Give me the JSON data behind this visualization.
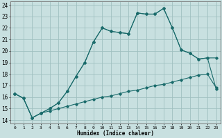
{
  "xlabel": "Humidex (Indice chaleur)",
  "background_color": "#c8e0e0",
  "grid_color": "#a0c0c0",
  "line_color": "#1a6b6b",
  "xlim": [
    -0.5,
    23.5
  ],
  "ylim": [
    13.7,
    24.3
  ],
  "yticks": [
    14,
    15,
    16,
    17,
    18,
    19,
    20,
    21,
    22,
    23,
    24
  ],
  "xticks": [
    0,
    1,
    2,
    3,
    4,
    5,
    6,
    7,
    8,
    9,
    10,
    11,
    12,
    13,
    14,
    15,
    16,
    17,
    18,
    19,
    20,
    21,
    22,
    23
  ],
  "line1_x": [
    0,
    1,
    2,
    3,
    4,
    5,
    6,
    7,
    8,
    9,
    10,
    11,
    12,
    13,
    14,
    15,
    16,
    17,
    18,
    19,
    20,
    21,
    22,
    23
  ],
  "line1_y": [
    16.3,
    15.9,
    14.2,
    14.6,
    14.8,
    15.0,
    15.2,
    15.4,
    15.6,
    15.8,
    16.0,
    16.1,
    16.3,
    16.5,
    16.6,
    16.8,
    17.0,
    17.1,
    17.3,
    17.5,
    17.7,
    17.9,
    18.0,
    16.8
  ],
  "line2_x": [
    0,
    1,
    2,
    3,
    4,
    5,
    6,
    7,
    8,
    9,
    10,
    11,
    12,
    13,
    14,
    15,
    16,
    17,
    18,
    19,
    20,
    21,
    22,
    23
  ],
  "line2_y": [
    16.3,
    15.9,
    14.2,
    14.6,
    15.0,
    15.5,
    16.5,
    17.8,
    19.0,
    20.8,
    22.0,
    21.7,
    21.6,
    21.5,
    23.3,
    23.2,
    23.2,
    23.7,
    22.0,
    20.1,
    19.8,
    19.3,
    19.4,
    16.7
  ],
  "line3_x": [
    0,
    1,
    2,
    3,
    4,
    5,
    6,
    7,
    8,
    9,
    10,
    11,
    12,
    13,
    14,
    15,
    16,
    17,
    18,
    19,
    20,
    21,
    22,
    23
  ],
  "line3_y": [
    16.3,
    15.9,
    14.2,
    14.6,
    15.0,
    15.5,
    16.5,
    17.8,
    19.0,
    20.8,
    22.0,
    21.7,
    21.6,
    21.5,
    23.3,
    23.2,
    23.2,
    23.7,
    22.0,
    20.1,
    19.8,
    19.3,
    19.4,
    19.4
  ]
}
